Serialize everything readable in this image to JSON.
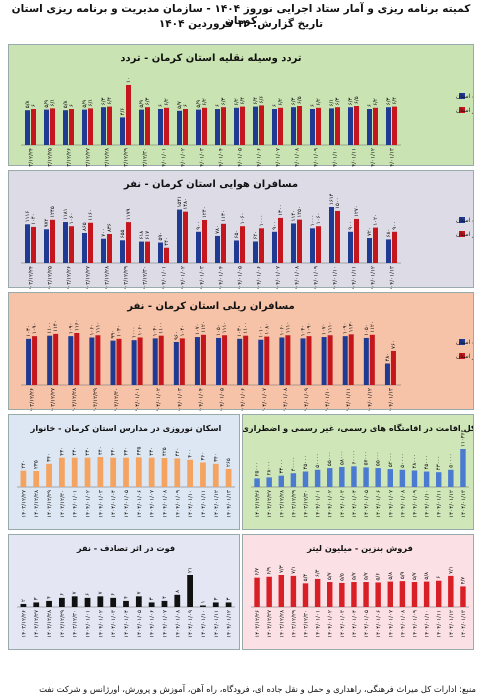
{
  "header": {
    "line1": "کمیته برنامه ریزی و آمار ستاد اجرایی نوروز ۱۴۰۴ - سازمان مدیریت و برنامه ریزی استان کرمان",
    "line2": "تاریخ گزارش: ۱۴ فروردین ۱۴۰۴"
  },
  "source_note": "منبع: ادارات کل میراث فرهنگی، راهداری و حمل و نقل جاده ای، فرودگاه، راه آهن، آموزش و پرورش، اورژانس و شرکت نفت",
  "colors": {
    "blue": "#1f3a93",
    "red": "#c4161c",
    "orange": "#f4a460",
    "black": "#111111"
  },
  "chart_data": [
    {
      "id": "traffic",
      "type": "bar",
      "title": "تردد وسیله نقلیه استان کرمان - تردد",
      "background": "#c9e3b2",
      "categories": [
        "۱۴۰۳/۱۲/۲۴",
        "۱۴۰۳/۱۲/۲۵",
        "۱۴۰۳/۱۲/۲۶",
        "۱۴۰۳/۱۲/۲۷",
        "۱۴۰۳/۱۲/۲۸",
        "۱۴۰۳/۱۲/۲۹",
        "۱۴۰۳/۱۲/۳۰",
        "۱۴۰۴/۰۱/۰۱",
        "۱۴۰۴/۰۱/۰۲",
        "۱۴۰۴/۰۱/۰۳",
        "۱۴۰۴/۰۱/۰۴",
        "۱۴۰۴/۰۱/۰۵",
        "۱۴۰۴/۰۱/۰۶",
        "۱۴۰۴/۰۱/۰۷",
        "۱۴۰۴/۰۱/۰۸",
        "۱۴۰۴/۰۱/۰۹",
        "۱۴۰۴/۰۱/۱۰",
        "۱۴۰۴/۰۱/۱۱",
        "۱۴۰۴/۰۱/۱۲",
        "۱۴۰۴/۰۱/۱۳"
      ],
      "series": [
        {
          "name": "زمینی ورودی به استان",
          "color": "#1f3a93",
          "values": [
            5.8,
            5.9,
            5.8,
            5.9,
            6.3,
            4.6,
            5.9,
            6.0,
            5.7,
            5.9,
            6.0,
            6.2,
            6.4,
            6.0,
            6.3,
            6.0,
            6.1,
            6.3,
            6.0,
            6.3
          ]
        },
        {
          "name": "زمینی خروجی از استان",
          "color": "#c4161c",
          "values": [
            6.0,
            6.1,
            6.0,
            6.1,
            6.4,
            10.0,
            6.3,
            6.2,
            6.0,
            6.2,
            6.3,
            6.4,
            6.6,
            6.2,
            6.5,
            6.2,
            6.3,
            6.5,
            6.2,
            6.4
          ]
        }
      ]
    },
    {
      "id": "air",
      "type": "bar",
      "title": "مسافران هوایی استان کرمان - نفر",
      "background": "#dcdbe6",
      "categories": [
        "۱۴۰۳/۱۲/۲۴",
        "۱۴۰۳/۱۲/۲۵",
        "۱۴۰۳/۱۲/۲۶",
        "۱۴۰۳/۱۲/۲۷",
        "۱۴۰۳/۱۲/۲۸",
        "۱۴۰۳/۱۲/۲۹",
        "۱۴۰۳/۱۲/۳۰",
        "۱۴۰۴/۰۱/۰۱",
        "۱۴۰۴/۰۱/۰۲",
        "۱۴۰۴/۰۱/۰۳",
        "۱۴۰۴/۰۱/۰۴",
        "۱۴۰۴/۰۱/۰۵",
        "۱۴۰۴/۰۱/۰۶",
        "۱۴۰۴/۰۱/۰۷",
        "۱۴۰۴/۰۱/۰۸",
        "۱۴۰۴/۰۱/۰۹",
        "۱۴۰۴/۰۱/۱۰",
        "۱۴۰۴/۰۱/۱۱",
        "۱۴۰۴/۰۱/۱۲",
        "۱۴۰۴/۰۱/۱۳"
      ],
      "series": [
        {
          "name": "ورودی به استان",
          "color": "#1f3a93",
          "values": [
            1116,
            972,
            1181,
            865,
            700,
            655,
            618,
            590,
            1541,
            900,
            780,
            650,
            620,
            900,
            1140,
            1000,
            1614,
            900,
            720,
            680
          ]
        },
        {
          "name": "خروجی از استان",
          "color": "#c4161c",
          "values": [
            1040,
            1245,
            1060,
            1160,
            836,
            1179,
            617,
            440,
            1480,
            1240,
            1130,
            1060,
            1000,
            1300,
            1250,
            1060,
            1500,
            1270,
            1020,
            900
          ]
        }
      ]
    },
    {
      "id": "rail",
      "type": "bar",
      "title": "مسافران ریلی استان کرمان - نفر",
      "background": "#f6c3a8",
      "categories": [
        "۱۴۰۳/۱۲/۲۶",
        "۱۴۰۳/۱۲/۲۷",
        "۱۴۰۳/۱۲/۲۸",
        "۱۴۰۳/۱۲/۲۹",
        "۱۴۰۳/۱۲/۳۰",
        "۱۴۰۴/۰۱/۰۱",
        "۱۴۰۴/۰۱/۰۲",
        "۱۴۰۴/۰۱/۰۳",
        "۱۴۰۴/۰۱/۰۴",
        "۱۴۰۴/۰۱/۰۵",
        "۱۴۰۴/۰۱/۰۶",
        "۱۴۰۴/۰۱/۰۷",
        "۱۴۰۴/۰۱/۰۸",
        "۱۴۰۴/۰۱/۰۹",
        "۱۴۰۴/۰۱/۱۰",
        "۱۴۰۴/۰۱/۱۱",
        "۱۴۰۴/۰۱/۱۲",
        "۱۴۰۴/۰۱/۱۳"
      ],
      "series": [
        {
          "name": "ورودی به استان",
          "color": "#1f3a93",
          "values": [
            1030,
            1100,
            1090,
            1060,
            990,
            1000,
            1040,
            960,
            1070,
            1050,
            1030,
            1010,
            1060,
            1040,
            1070,
            1090,
            1050,
            480
          ]
        },
        {
          "name": "خروجی از استان",
          "color": "#c4161c",
          "values": [
            1090,
            1140,
            1160,
            1110,
            1030,
            1060,
            1100,
            1040,
            1120,
            1110,
            1100,
            1080,
            1110,
            1090,
            1110,
            1130,
            1120,
            760
          ]
        }
      ]
    },
    {
      "id": "school",
      "type": "bar",
      "title": "اسکان نوروزی در مدارس استان کرمان - خانوار",
      "background": "#dde7f3",
      "categories": [
        "۱۴۰۳/۱۲/۲۷",
        "۱۴۰۳/۱۲/۲۸",
        "۱۴۰۳/۱۲/۲۹",
        "۱۴۰۳/۱۲/۳۰",
        "۱۴۰۴/۰۱/۰۱",
        "۱۴۰۴/۰۱/۰۲",
        "۱۴۰۴/۰۱/۰۳",
        "۱۴۰۴/۰۱/۰۴",
        "۱۴۰۴/۰۱/۰۵",
        "۱۴۰۴/۰۱/۰۶",
        "۱۴۰۴/۰۱/۰۷",
        "۱۴۰۴/۰۱/۰۸",
        "۱۴۰۴/۰۱/۰۹",
        "۱۴۰۴/۰۱/۱۰",
        "۱۴۰۴/۰۱/۱۱",
        "۱۴۰۴/۰۱/۱۲",
        "۱۴۰۴/۰۱/۱۳"
      ],
      "series": [
        {
          "name": "",
          "color": "#f4a460",
          "values": [
            240,
            235,
            340,
            430,
            430,
            430,
            440,
            430,
            430,
            435,
            430,
            425,
            420,
            400,
            360,
            340,
            265
          ]
        }
      ]
    },
    {
      "id": "stay",
      "type": "bar",
      "title": "میزان کل اقامت در اقامتگاه های رسمی، غیر رسمی و اضطراری - نفر",
      "background": "#cfe7b8",
      "categories": [
        "۱۴۰۳/۱۲/۲۶",
        "۱۴۰۳/۱۲/۲۷",
        "۱۴۰۳/۱۲/۲۸",
        "۱۴۰۳/۱۲/۲۹",
        "۱۴۰۳/۱۲/۳۰",
        "۱۴۰۴/۰۱/۰۱",
        "۱۴۰۴/۰۱/۰۲",
        "۱۴۰۴/۰۱/۰۳",
        "۱۴۰۴/۰۱/۰۴",
        "۱۴۰۴/۰۱/۰۵",
        "۱۴۰۴/۰۱/۰۶",
        "۱۴۰۴/۰۱/۰۷",
        "۱۴۰۴/۰۱/۰۸",
        "۱۴۰۴/۰۱/۰۹",
        "۱۴۰۴/۰۱/۱۰",
        "۱۴۰۴/۰۱/۱۱",
        "۱۴۰۴/۰۱/۱۲",
        "۱۴۰۴/۰۱/۱۳"
      ],
      "series": [
        {
          "name": "",
          "color": "#4a7bd0",
          "values": [
            25000,
            28000,
            33000,
            40000,
            45000,
            50000,
            55000,
            58000,
            60000,
            57000,
            55000,
            52000,
            50000,
            48000,
            45000,
            43000,
            50000,
            110362
          ]
        }
      ]
    },
    {
      "id": "deaths",
      "type": "bar",
      "title": "فوت در اثر تصادف - نفر",
      "background": "#e4e6f4",
      "categories": [
        "۱۴۰۳/۱۲/۲۶",
        "۱۴۰۳/۱۲/۲۷",
        "۱۴۰۳/۱۲/۲۸",
        "۱۴۰۳/۱۲/۲۹",
        "۱۴۰۳/۱۲/۳۰",
        "۱۴۰۴/۰۱/۰۱",
        "۱۴۰۴/۰۱/۰۲",
        "۱۴۰۴/۰۱/۰۳",
        "۱۴۰۴/۰۱/۰۴",
        "۱۴۰۴/۰۱/۰۵",
        "۱۴۰۴/۰۱/۰۶",
        "۱۴۰۴/۰۱/۰۷",
        "۱۴۰۴/۰۱/۰۸",
        "۱۴۰۴/۰۱/۰۹",
        "۱۴۰۴/۰۱/۱۰",
        "۱۴۰۴/۰۱/۱۱",
        "۱۴۰۴/۰۱/۱۲"
      ],
      "series": [
        {
          "name": "",
          "color": "#111111",
          "values": [
            2,
            3,
            4,
            6,
            7,
            6,
            7,
            6,
            4,
            7,
            3,
            4,
            8,
            21,
            1,
            3,
            3
          ]
        }
      ]
    },
    {
      "id": "fuel",
      "type": "bar",
      "title": "فروش بنزین - میلیون لیتر",
      "background": "#fbe1e5",
      "categories": [
        "۱۴۰۳/۱۲/۲۶",
        "۱۴۰۳/۱۲/۲۷",
        "۱۴۰۳/۱۲/۲۸",
        "۱۴۰۳/۱۲/۲۹",
        "۱۴۰۳/۱۲/۳۰",
        "۱۴۰۴/۰۱/۰۱",
        "۱۴۰۴/۰۱/۰۲",
        "۱۴۰۴/۰۱/۰۳",
        "۱۴۰۴/۰۱/۰۴",
        "۱۴۰۴/۰۱/۰۵",
        "۱۴۰۴/۰۱/۰۶",
        "۱۴۰۴/۰۱/۰۷",
        "۱۴۰۴/۰۱/۰۸",
        "۱۴۰۴/۰۱/۰۹",
        "۱۴۰۴/۰۱/۱۰",
        "۱۴۰۴/۰۱/۱۱",
        "۱۴۰۴/۰۱/۱۲",
        "۱۴۰۴/۰۱/۱۳"
      ],
      "series": [
        {
          "name": "",
          "color": "#d81f26",
          "values": [
            6.7,
            6.9,
            7.3,
            7.1,
            5.4,
            6.4,
            5.7,
            5.5,
            5.7,
            5.7,
            5.6,
            5.8,
            5.9,
            5.7,
            5.8,
            6.0,
            7.1,
            4.7
          ]
        }
      ]
    }
  ]
}
